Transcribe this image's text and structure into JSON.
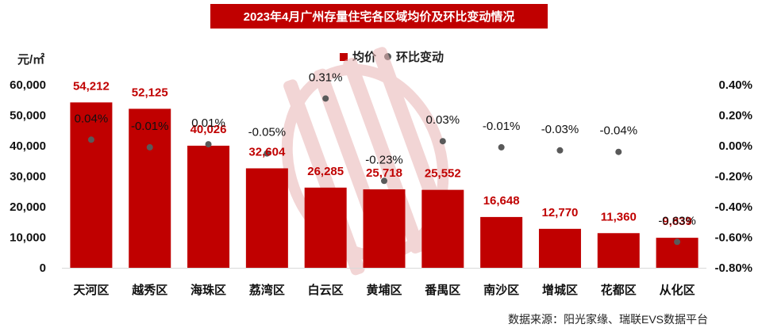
{
  "title": "2023年4月广州存量住宅各区域均价及环比变动情况",
  "unit": "元/㎡",
  "legend": {
    "bar_label": "均价",
    "dot_label": "环比变动"
  },
  "source": "数据来源：阳光家缘、瑞联EVS数据平台",
  "colors": {
    "bar": "#c00000",
    "dot": "#595959",
    "title_bg": "#c00000",
    "watermark": "#e8b4b4"
  },
  "chart_data": {
    "type": "bar",
    "categories": [
      "天河区",
      "越秀区",
      "海珠区",
      "荔湾区",
      "白云区",
      "黄埔区",
      "番禺区",
      "南沙区",
      "增城区",
      "花都区",
      "从化区"
    ],
    "series": [
      {
        "name": "均价",
        "type": "bar",
        "axis": "left",
        "values": [
          54212,
          52125,
          40026,
          32604,
          26285,
          25718,
          25552,
          16648,
          12770,
          11360,
          9839
        ],
        "labels": [
          "54,212",
          "52,125",
          "40,026",
          "32,604",
          "26,285",
          "25,718",
          "25,552",
          "16,648",
          "12,770",
          "11,360",
          "9,839"
        ]
      },
      {
        "name": "环比变动",
        "type": "scatter",
        "axis": "right",
        "values": [
          0.04,
          -0.01,
          0.01,
          -0.05,
          0.31,
          -0.23,
          0.03,
          -0.01,
          -0.03,
          -0.04,
          -0.63
        ],
        "labels": [
          "0.04%",
          "-0.01%",
          "0.01%",
          "-0.05%",
          "0.31%",
          "-0.23%",
          "0.03%",
          "-0.01%",
          "-0.03%",
          "-0.04%",
          "-0.63%"
        ]
      }
    ],
    "y_left": {
      "range": [
        0,
        60000
      ],
      "ticks": [
        "0",
        "10,000",
        "20,000",
        "30,000",
        "40,000",
        "50,000",
        "60,000"
      ]
    },
    "y_right": {
      "range": [
        -0.8,
        0.4
      ],
      "ticks": [
        "-0.80%",
        "-0.60%",
        "-0.40%",
        "-0.20%",
        "0.00%",
        "0.20%",
        "0.40%"
      ]
    },
    "grid": false,
    "legend_position": "top-center"
  }
}
